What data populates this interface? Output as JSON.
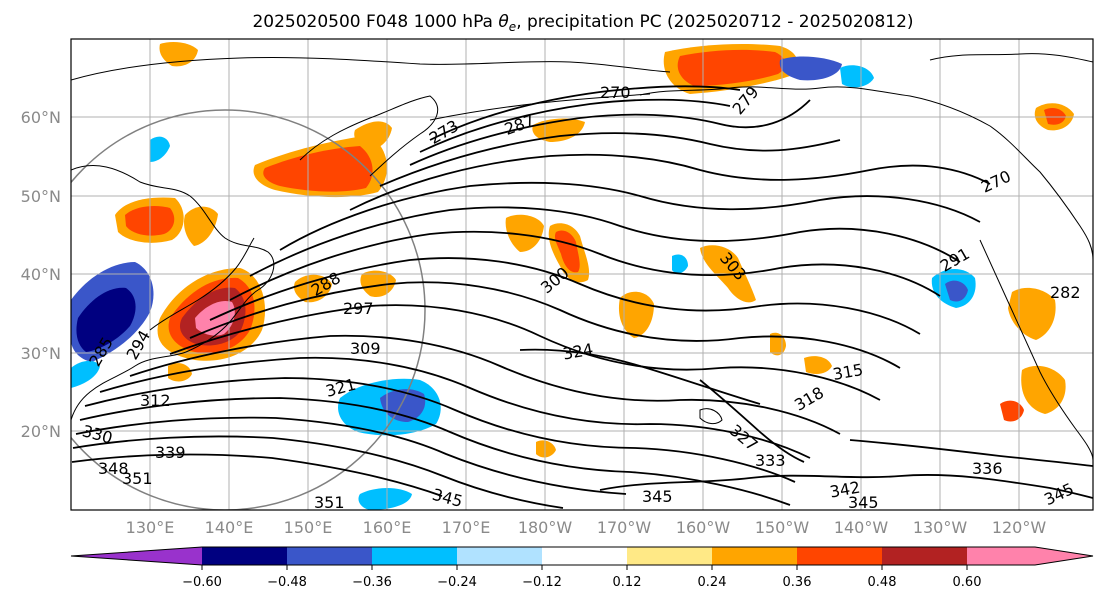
{
  "title": {
    "prefix": "2025020500 F048 1000 hPa ",
    "symbol": "θ",
    "subscript": "e",
    "suffix": ", precipitation PC (2025020712 - 2025020812)"
  },
  "map": {
    "lat_labels": [
      "60°N",
      "50°N",
      "40°N",
      "30°N",
      "20°N"
    ],
    "lon_labels": [
      "130°E",
      "140°E",
      "150°E",
      "160°E",
      "170°E",
      "180°W",
      "170°W",
      "160°W",
      "150°W",
      "140°W",
      "130°W",
      "120°W"
    ],
    "contour_labels": [
      "270",
      "279",
      "287",
      "273",
      "270",
      "288",
      "297",
      "300",
      "291",
      "282",
      "285",
      "294",
      "309",
      "324",
      "315",
      "318",
      "321",
      "312",
      "330",
      "339",
      "348",
      "351",
      "351",
      "345",
      "345",
      "333",
      "327",
      "342",
      "345",
      "336",
      "345",
      "303"
    ],
    "colors": {
      "land_line": "#000000",
      "grid": "#b0b0b0",
      "contour": "#000000"
    }
  },
  "colorbar": {
    "tick_labels": [
      "−0.60",
      "−0.48",
      "−0.36",
      "−0.24",
      "−0.12",
      "0.12",
      "0.24",
      "0.36",
      "0.48",
      "0.60"
    ],
    "colors": [
      "#9932CC",
      "#000080",
      "#3A56C9",
      "#00BFFF",
      "#B0E2FF",
      "#FFFFFF",
      "#FFE986",
      "#FFA500",
      "#FF4500",
      "#B22222",
      "#FF82AB",
      "#FF82AB"
    ]
  },
  "legend": {
    "shading": [
      {
        "range": "< −0.60",
        "color": "#9932CC"
      },
      {
        "range": "−0.60 to −0.48",
        "color": "#000080"
      },
      {
        "range": "−0.48 to −0.36",
        "color": "#3A56C9"
      },
      {
        "range": "−0.36 to −0.24",
        "color": "#00BFFF"
      },
      {
        "range": "−0.24 to −0.12",
        "color": "#B0E2FF"
      },
      {
        "range": "−0.12 to 0.12",
        "color": "#FFFFFF"
      },
      {
        "range": "0.12 to 0.24",
        "color": "#FFE986"
      },
      {
        "range": "0.24 to 0.36",
        "color": "#FFA500"
      },
      {
        "range": "0.36 to 0.48",
        "color": "#FF4500"
      },
      {
        "range": "0.48 to 0.60",
        "color": "#B22222"
      },
      {
        "range": "> 0.60",
        "color": "#FF82AB"
      }
    ]
  }
}
